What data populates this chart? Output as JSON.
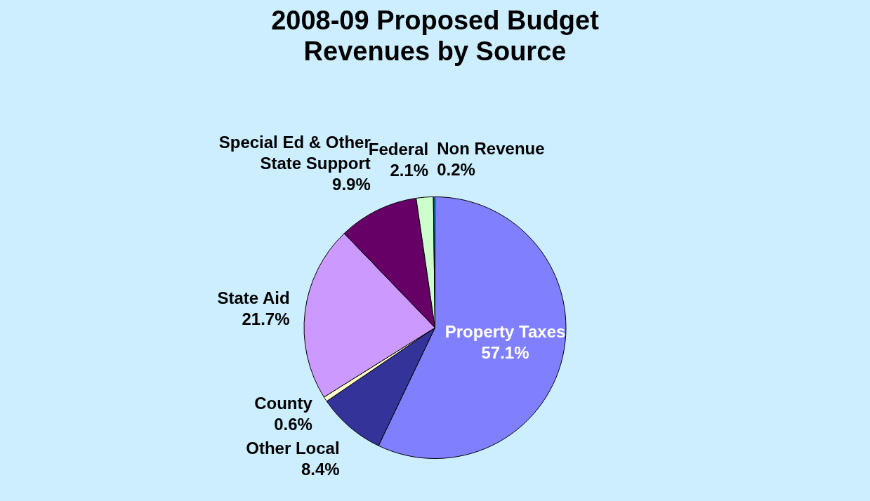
{
  "chart_data": {
    "type": "pie",
    "title": "2008-09 Proposed Budget Revenues by Source",
    "categories": [
      "Property Taxes",
      "Other Local",
      "County",
      "State Aid",
      "Special Ed & Other State Support",
      "Federal",
      "Non Revenue"
    ],
    "values": [
      57.1,
      8.4,
      0.6,
      21.7,
      9.9,
      2.1,
      0.2
    ],
    "value_labels": [
      "57.1%",
      "8.4%",
      "0.6%",
      "21.7%",
      "9.9%",
      "2.1%",
      "0.2%"
    ],
    "colors": [
      "#8080ff",
      "#333399",
      "#ffffcc",
      "#cc99ff",
      "#660066",
      "#ccffcc",
      "#0080c0"
    ],
    "legend": false
  }
}
